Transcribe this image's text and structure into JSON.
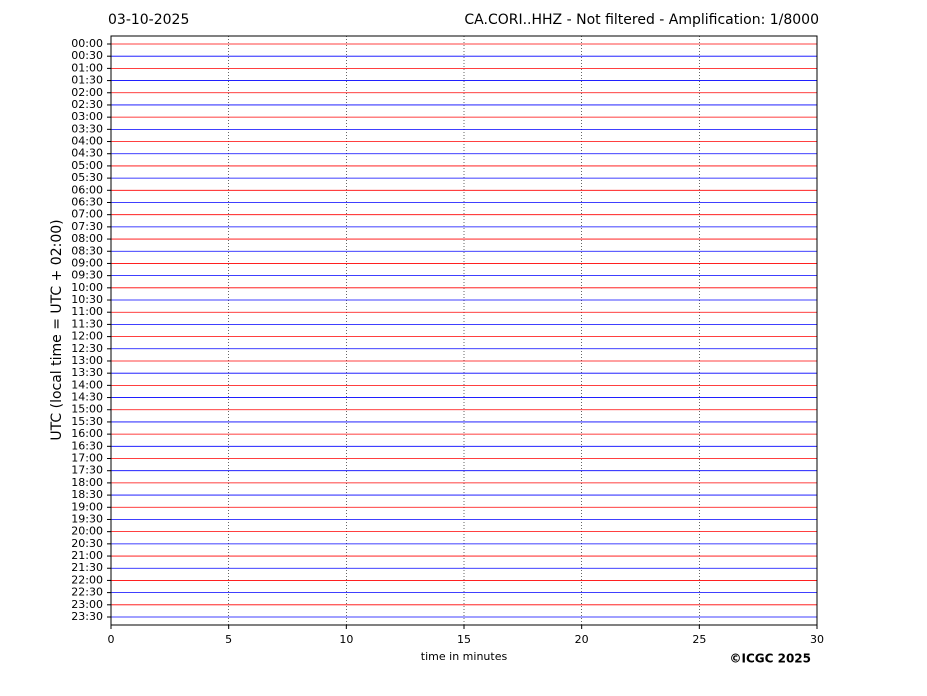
{
  "chart_data": {
    "type": "helicorder",
    "title_left": "03-10-2025",
    "title_right": "CA.CORI..HHZ - Not filtered - Amplification: 1/8000",
    "xlabel": "time in minutes",
    "ylabel": "UTC (local time = UTC + 02:00)",
    "copyright": "©ICGC 2025",
    "xlim": [
      0,
      30
    ],
    "xticks": [
      0,
      5,
      10,
      15,
      20,
      25,
      30
    ],
    "grid": true,
    "trace_colors": [
      "#ff0000",
      "#0000ff"
    ],
    "categories": [
      "00:00",
      "00:30",
      "01:00",
      "01:30",
      "02:00",
      "02:30",
      "03:00",
      "03:30",
      "04:00",
      "04:30",
      "05:00",
      "05:30",
      "06:00",
      "06:30",
      "07:00",
      "07:30",
      "08:00",
      "08:30",
      "09:00",
      "09:30",
      "10:00",
      "10:30",
      "11:00",
      "11:30",
      "12:00",
      "12:30",
      "13:00",
      "13:30",
      "14:00",
      "14:30",
      "15:00",
      "15:30",
      "16:00",
      "16:30",
      "17:00",
      "17:30",
      "18:00",
      "18:30",
      "19:00",
      "19:30",
      "20:00",
      "20:30",
      "21:00",
      "21:30",
      "22:00",
      "22:30",
      "23:00",
      "23:30"
    ]
  }
}
